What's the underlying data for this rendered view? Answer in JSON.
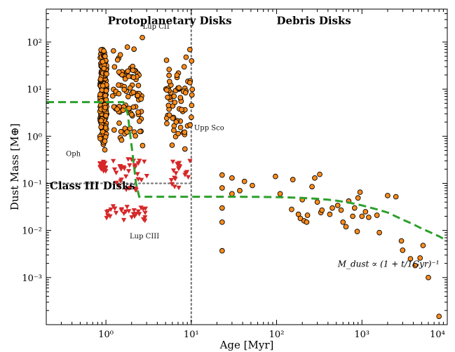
{
  "chart_data": {
    "type": "scatter",
    "xlabel": "Age [Myr]",
    "ylabel": "Dust Mass [M⊕]",
    "x_scale": "log",
    "y_scale": "log",
    "xlim": [
      0.2,
      10000
    ],
    "ylim": [
      0.0001,
      500
    ],
    "grid": false,
    "x_ticks": [
      {
        "value": 1,
        "label": "10⁰"
      },
      {
        "value": 10,
        "label": "10¹"
      },
      {
        "value": 100,
        "label": "10²"
      },
      {
        "value": 1000,
        "label": "10³"
      },
      {
        "value": 10000,
        "label": "10⁴"
      }
    ],
    "y_ticks": [
      {
        "value": 0.001,
        "label": "10⁻³"
      },
      {
        "value": 0.01,
        "label": "10⁻²"
      },
      {
        "value": 0.1,
        "label": "10⁻¹"
      },
      {
        "value": 1,
        "label": "10⁰"
      },
      {
        "value": 10,
        "label": "10¹"
      },
      {
        "value": 100,
        "label": "10²"
      }
    ],
    "region_labels": [
      {
        "text": "Protoplanetary Disks",
        "x": 1.05,
        "y": 240
      },
      {
        "text": "Debris Disks",
        "x": 100,
        "y": 240
      },
      {
        "text": "Class III Disks",
        "x": 0.22,
        "y": 0.075
      }
    ],
    "annotations": [
      {
        "text": "Lup CII",
        "x": 2.7,
        "y": 190
      },
      {
        "text": "Upp Sco",
        "x": 10.8,
        "y": 1.35
      },
      {
        "text": "Oph",
        "x": 0.34,
        "y": 0.38
      },
      {
        "text": "Lup CIII",
        "x": 1.9,
        "y": 0.0068
      }
    ],
    "formula_label": {
      "text": "M_dust ∝ (1 + t/1Gyr)⁻¹",
      "x": 520,
      "y": 0.0017
    },
    "reference_lines": [
      {
        "orientation": "vertical",
        "x": 10,
        "style": "dotted",
        "color": "#7a7a7a"
      },
      {
        "orientation": "horizontal",
        "y": 0.1,
        "x_range": [
          0.2,
          10
        ],
        "style": "dotted",
        "color": "#7a7a7a"
      }
    ],
    "colors": {
      "disk_points": "#ff8c1a",
      "disk_edge": "#000000",
      "upper_limits": "#d62728",
      "model_line": "#2ca02c"
    },
    "clusters": [
      {
        "name": "Oph",
        "marker": "circle",
        "x_range": [
          0.85,
          1.02
        ],
        "y_range": [
          0.2,
          200
        ],
        "count": 190
      },
      {
        "name": "Lup CII",
        "marker": "circle",
        "x_range": [
          1.2,
          2.7
        ],
        "y_range": [
          0.35,
          230
        ],
        "count": 90
      },
      {
        "name": "Upp Sco",
        "marker": "circle",
        "x_range": [
          5,
          10.5
        ],
        "y_range": [
          0.2,
          120
        ],
        "count": 70
      },
      {
        "name": "Oph limits",
        "marker": "triangle-down",
        "x_range": [
          0.85,
          1.0
        ],
        "y_range": [
          0.18,
          0.3
        ],
        "count": 20
      },
      {
        "name": "Lup CII limits",
        "marker": "triangle-down",
        "x_range": [
          1.2,
          3.2
        ],
        "y_range": [
          0.07,
          0.35
        ],
        "count": 35
      },
      {
        "name": "Upp Sco limits",
        "marker": "triangle-down",
        "x_range": [
          5.5,
          10.5
        ],
        "y_range": [
          0.08,
          0.3
        ],
        "count": 20
      },
      {
        "name": "Lup CIII limits",
        "marker": "triangle-down",
        "x_range": [
          1.0,
          3.0
        ],
        "y_range": [
          0.016,
          0.033
        ],
        "count": 30
      }
    ],
    "series": [
      {
        "marker": "circle",
        "points": [
          [
            23,
            0.15
          ],
          [
            23,
            0.08
          ],
          [
            23,
            0.03
          ],
          [
            23,
            0.015
          ],
          [
            23,
            0.0037
          ],
          [
            30,
            0.13
          ],
          [
            30,
            0.06
          ],
          [
            37,
            0.07
          ],
          [
            42,
            0.11
          ],
          [
            52,
            0.09
          ],
          [
            97,
            0.14
          ],
          [
            110,
            0.06
          ],
          [
            150,
            0.028
          ],
          [
            155,
            0.12
          ],
          [
            180,
            0.022
          ],
          [
            190,
            0.018
          ],
          [
            200,
            0.045
          ],
          [
            210,
            0.016
          ],
          [
            225,
            0.015
          ],
          [
            230,
            0.021
          ],
          [
            260,
            0.085
          ],
          [
            280,
            0.13
          ],
          [
            300,
            0.04
          ],
          [
            320,
            0.155
          ],
          [
            330,
            0.024
          ],
          [
            340,
            0.027
          ],
          [
            420,
            0.022
          ],
          [
            450,
            0.03
          ],
          [
            520,
            0.034
          ],
          [
            570,
            0.027
          ],
          [
            600,
            0.015
          ],
          [
            650,
            0.012
          ],
          [
            700,
            0.042
          ],
          [
            780,
            0.02
          ],
          [
            820,
            0.03
          ],
          [
            880,
            0.0095
          ],
          [
            900,
            0.049
          ],
          [
            950,
            0.065
          ],
          [
            1000,
            0.02
          ],
          [
            1100,
            0.025
          ],
          [
            1200,
            0.019
          ],
          [
            1500,
            0.021
          ],
          [
            1600,
            0.009
          ],
          [
            2000,
            0.055
          ],
          [
            2500,
            0.052
          ],
          [
            2900,
            0.006
          ],
          [
            3000,
            0.0038
          ],
          [
            3700,
            0.0025
          ],
          [
            4200,
            0.0018
          ],
          [
            4800,
            0.0026
          ],
          [
            5200,
            0.0048
          ],
          [
            6000,
            0.001
          ],
          [
            8000,
            0.00015
          ]
        ]
      }
    ],
    "model_curve": {
      "style": "dashed",
      "points": [
        [
          0.2,
          5.3
        ],
        [
          1.6,
          5.3
        ],
        [
          1.8,
          3.0
        ],
        [
          1.95,
          0.9
        ],
        [
          2.1,
          0.3
        ],
        [
          2.25,
          0.1
        ],
        [
          2.45,
          0.052
        ],
        [
          10,
          0.052
        ],
        [
          30,
          0.052
        ],
        [
          60,
          0.0515
        ],
        [
          100,
          0.051
        ],
        [
          150,
          0.05
        ],
        [
          200,
          0.049
        ],
        [
          300,
          0.047
        ],
        [
          400,
          0.045
        ],
        [
          500,
          0.043
        ],
        [
          700,
          0.039
        ],
        [
          1000,
          0.034
        ],
        [
          1500,
          0.028
        ],
        [
          2000,
          0.024
        ],
        [
          3000,
          0.017
        ],
        [
          4000,
          0.0135
        ],
        [
          5000,
          0.011
        ],
        [
          6000,
          0.0095
        ],
        [
          8000,
          0.0075
        ],
        [
          10000,
          0.006
        ]
      ]
    }
  }
}
